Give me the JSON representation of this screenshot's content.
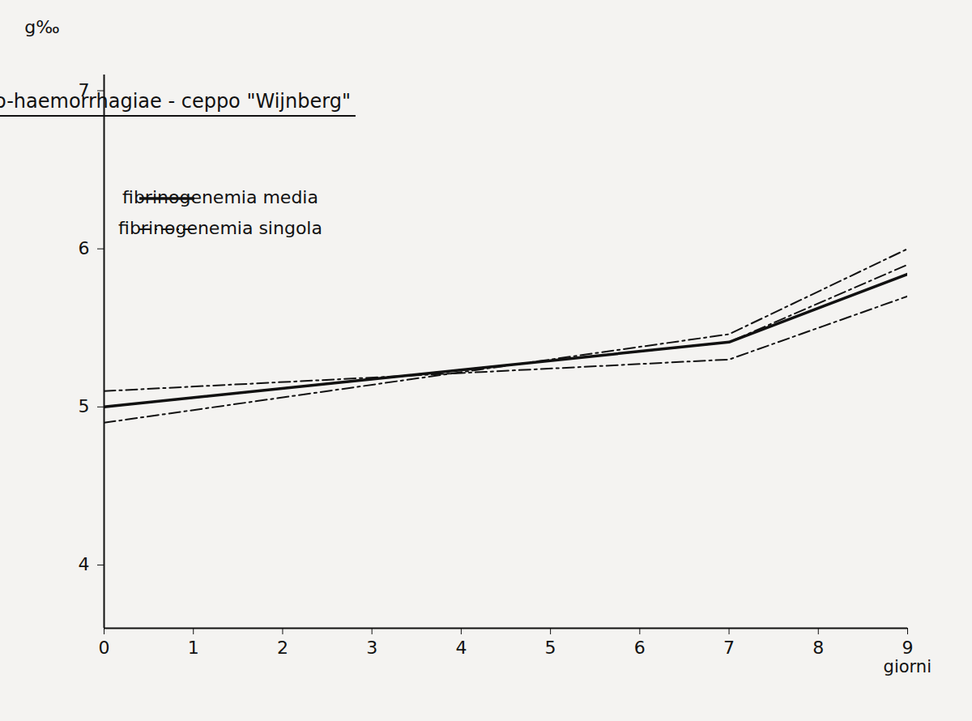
{
  "chart_data": {
    "type": "line",
    "title": "L. ictero-haemorrhagiae - ceppo \"Wijnberg\"",
    "y_label": "g‰",
    "x_label": "giorni",
    "x": [
      0,
      7,
      9
    ],
    "series": [
      {
        "name": "fibrinogenemia media",
        "color": "#111111",
        "line_style": "solid",
        "values": [
          5.0,
          5.41,
          5.84
        ]
      },
      {
        "name": "fibrinogenemia singola",
        "color": "#111111",
        "line_style": "dashdot",
        "values": [
          5.1,
          5.3,
          5.7
        ]
      },
      {
        "name": "fibrinogenemia singola",
        "color": "#111111",
        "line_style": "dashdot",
        "values": [
          4.9,
          5.46,
          6.0
        ]
      },
      {
        "name": "fibrinogenemia singola",
        "color": "#111111",
        "line_style": "dashdot",
        "values": [
          5.0,
          5.41,
          5.9
        ]
      }
    ],
    "xlim": [
      0,
      9
    ],
    "xticks": [
      0,
      1,
      2,
      3,
      4,
      5,
      6,
      7,
      8,
      9
    ],
    "ylim": [
      3.6,
      7.1
    ],
    "yticks": [
      4,
      5,
      6,
      7
    ],
    "grid": false,
    "legend": "upper left"
  }
}
